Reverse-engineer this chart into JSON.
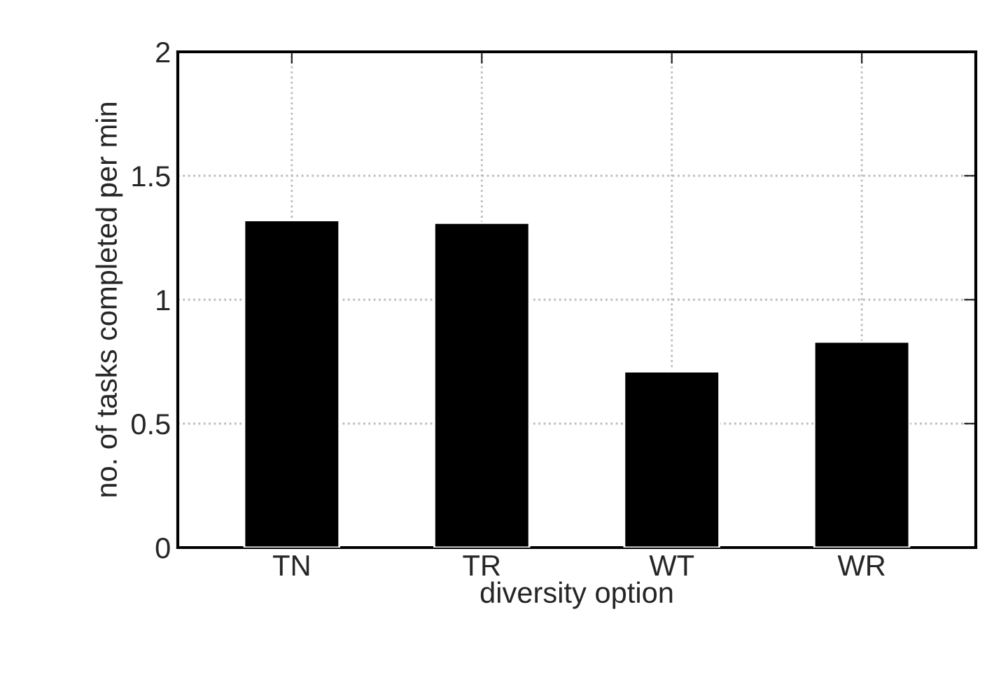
{
  "chart_data": {
    "type": "bar",
    "xlabel": "diversity option",
    "ylabel": "no. of tasks completed per min",
    "categories": [
      "TN",
      "TR",
      "WT",
      "WR"
    ],
    "values": [
      1.32,
      1.31,
      0.71,
      0.83
    ],
    "color": "#000000",
    "ylim": [
      0,
      2
    ],
    "yticks": [
      0,
      {
        "value": 0.5,
        "label": "0.5"
      },
      1,
      {
        "value": 1.5,
        "label": "1.5"
      },
      2
    ],
    "grid": true
  }
}
